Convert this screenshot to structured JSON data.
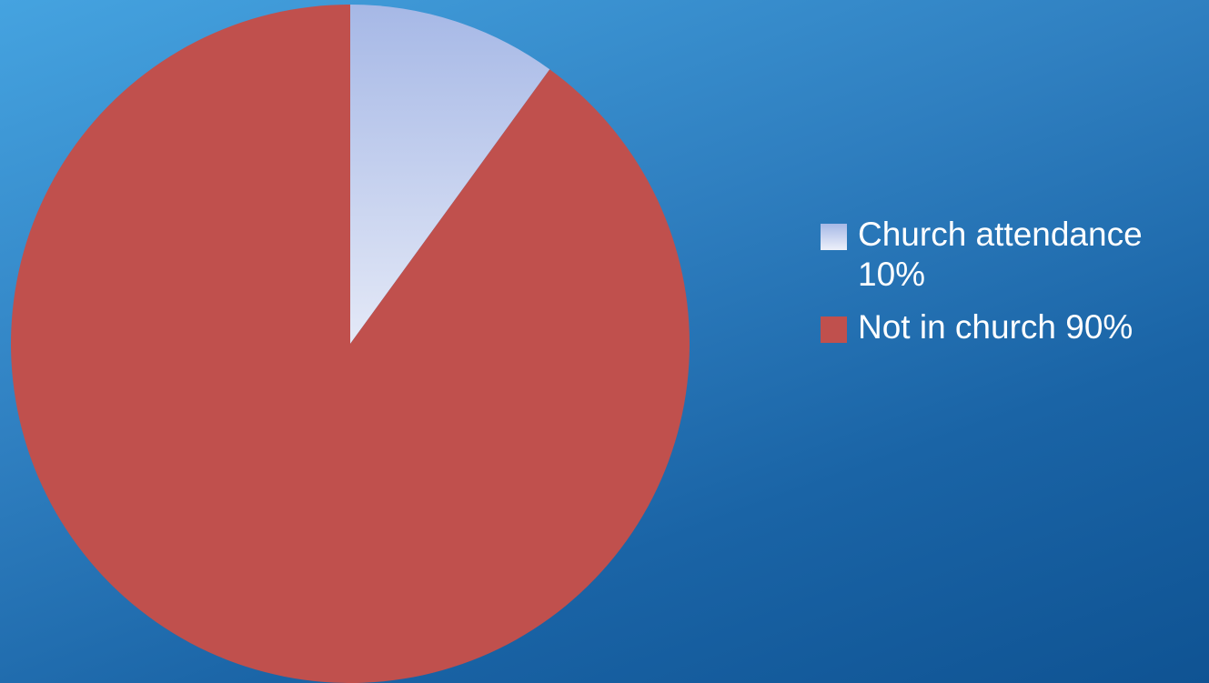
{
  "chart_data": {
    "type": "pie",
    "title": "",
    "slices": [
      {
        "label": "Church attendance 10%",
        "value": 10,
        "color": "#b8c6ea"
      },
      {
        "label": "Not in church 90%",
        "value": 90,
        "color": "#c0504d"
      }
    ],
    "start_angle": "12 o'clock",
    "direction": "clockwise",
    "legend_position": "right"
  }
}
